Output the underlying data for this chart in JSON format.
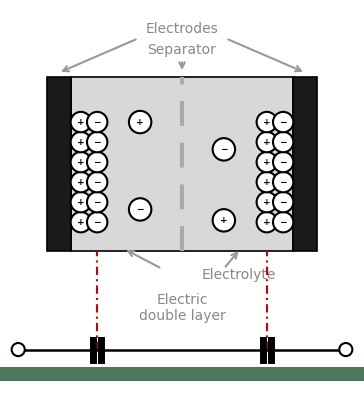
{
  "bg_color": "#ffffff",
  "electrode_color": "#1a1a1a",
  "electrolyte_color": "#d8d8d8",
  "arrow_color": "#999999",
  "red_dash_color": "#cc0000",
  "text_color": "#888888",
  "title_electrodes": "Electrodes",
  "title_separator": "Separator",
  "title_electrolyte": "Electrolyte",
  "title_edl": "Electric\ndouble layer",
  "label_fontsize": 10,
  "ion_fontsize": 6.5
}
